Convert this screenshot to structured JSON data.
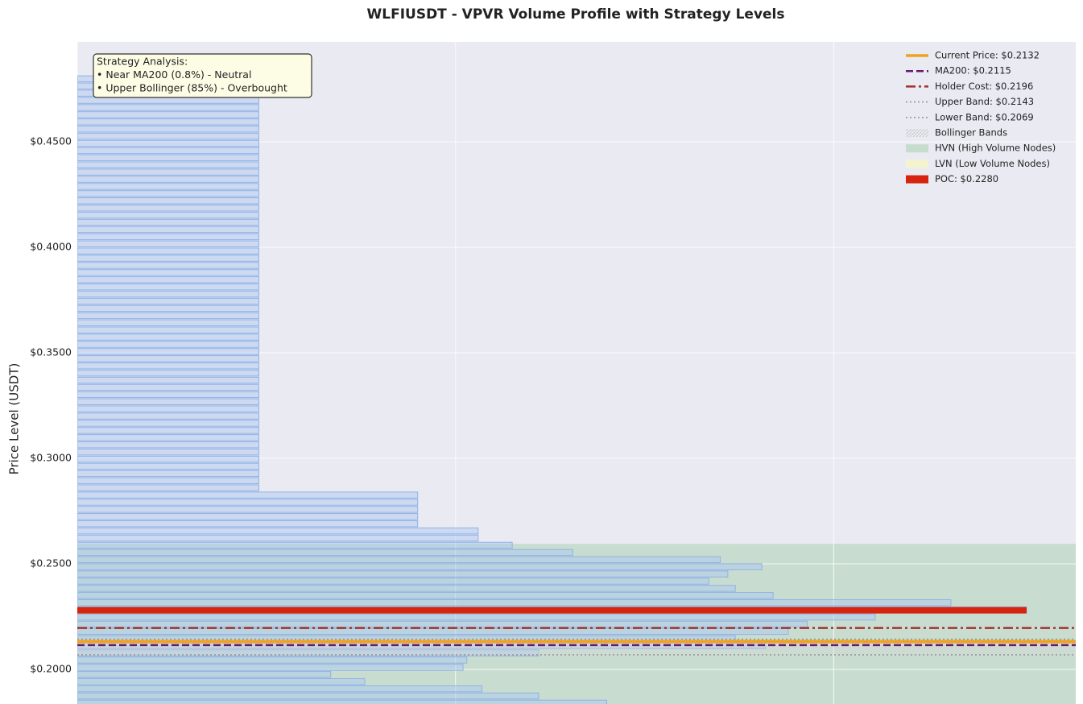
{
  "chart_data": {
    "type": "barh",
    "title": "WLFIUSDT - VPVR Volume Profile with Strategy Levels",
    "ylabel": "Price Level (USDT)",
    "ylim": [
      0.1836,
      0.4973
    ],
    "yticks": [
      {
        "value": 0.2,
        "label": "$0.2000"
      },
      {
        "value": 0.25,
        "label": "$0.2500"
      },
      {
        "value": 0.3,
        "label": "$0.3000"
      },
      {
        "value": 0.35,
        "label": "$0.3500"
      },
      {
        "value": 0.4,
        "label": "$0.4000"
      },
      {
        "value": 0.45,
        "label": "$0.4500"
      }
    ],
    "xlim": [
      0,
      2.64
    ],
    "xticks": [
      0,
      1,
      2
    ],
    "grid": true,
    "legend": "upper right",
    "color": "#aec7ef",
    "y": [
      0.184,
      0.1874,
      0.1908,
      0.1942,
      0.1976,
      0.201,
      0.2044,
      0.2078,
      0.2112,
      0.2146,
      0.218,
      0.2214,
      0.2248,
      0.2282,
      0.2316,
      0.235,
      0.2384,
      0.2418,
      0.2452,
      0.2486,
      0.252,
      0.2554,
      0.2588,
      0.2622,
      0.2656,
      0.269,
      0.2724,
      0.2758,
      0.2792,
      0.2826,
      0.286,
      0.2894,
      0.2928,
      0.2962,
      0.2996,
      0.303,
      0.3064,
      0.3098,
      0.3132,
      0.3166,
      0.32,
      0.3234,
      0.3268,
      0.3302,
      0.3336,
      0.337,
      0.3404,
      0.3438,
      0.3472,
      0.3506,
      0.354,
      0.3574,
      0.3608,
      0.3642,
      0.3676,
      0.371,
      0.3744,
      0.3778,
      0.3812,
      0.3846,
      0.388,
      0.3914,
      0.3948,
      0.3982,
      0.4016,
      0.405,
      0.4084,
      0.4118,
      0.4152,
      0.4186,
      0.422,
      0.4254,
      0.4288,
      0.4322,
      0.4356,
      0.439,
      0.4424,
      0.4458,
      0.4492,
      0.4526,
      0.456,
      0.4594,
      0.4628,
      0.4662,
      0.4696,
      0.473,
      0.4764,
      0.4798
    ],
    "values": [
      1.4,
      1.22,
      1.07,
      0.76,
      0.67,
      1.02,
      1.03,
      1.22,
      1.82,
      1.74,
      1.88,
      1.93,
      2.11,
      2.51,
      2.31,
      1.84,
      1.74,
      1.67,
      1.72,
      1.81,
      1.7,
      1.31,
      1.15,
      1.06,
      1.06,
      0.9,
      0.9,
      0.9,
      0.9,
      0.9,
      0.48,
      0.48,
      0.48,
      0.48,
      0.48,
      0.48,
      0.48,
      0.48,
      0.48,
      0.48,
      0.48,
      0.48,
      0.48,
      0.48,
      0.48,
      0.48,
      0.48,
      0.48,
      0.48,
      0.48,
      0.48,
      0.48,
      0.48,
      0.48,
      0.48,
      0.48,
      0.48,
      0.48,
      0.48,
      0.48,
      0.48,
      0.48,
      0.48,
      0.48,
      0.48,
      0.48,
      0.48,
      0.48,
      0.48,
      0.48,
      0.48,
      0.48,
      0.48,
      0.48,
      0.48,
      0.48,
      0.48,
      0.48,
      0.48,
      0.48,
      0.48,
      0.48,
      0.48,
      0.48,
      0.48,
      0.48,
      0.48,
      0.48
    ],
    "levels": [
      {
        "name": "Current Price: $0.2132",
        "value": 0.2132,
        "color": "#f0a21e",
        "style": "solid"
      },
      {
        "name": "MA200: $0.2115",
        "value": 0.2115,
        "color": "#6a1870",
        "style": "dashed"
      },
      {
        "name": "Holder Cost: $0.2196",
        "value": 0.2196,
        "color": "#a0322c",
        "style": "dashdot"
      },
      {
        "name": "Upper Band: $0.2143",
        "value": 0.2143,
        "color": "#999999",
        "style": "dotted"
      },
      {
        "name": "Lower Band: $0.2069",
        "value": 0.2069,
        "color": "#999999",
        "style": "dotted"
      }
    ],
    "bands": {
      "name": "Bollinger Bands",
      "color": "#d8d8d8"
    },
    "hvn": {
      "name": "HVN (High Volume Nodes)",
      "range": [
        0.1836,
        0.2595
      ],
      "color": "#c6dccd"
    },
    "lvn": {
      "name": "LVN (Low Volume Nodes)",
      "color": "#f3f3cf"
    },
    "poc": {
      "name": "POC: $0.2280",
      "value": 0.228,
      "volume": 2.51,
      "color": "#d62410"
    },
    "annotation": {
      "lines": [
        "Strategy Analysis:",
        "• Near MA200 (0.8%) - Neutral",
        "• Upper Bollinger (85%) - Overbought"
      ]
    }
  }
}
